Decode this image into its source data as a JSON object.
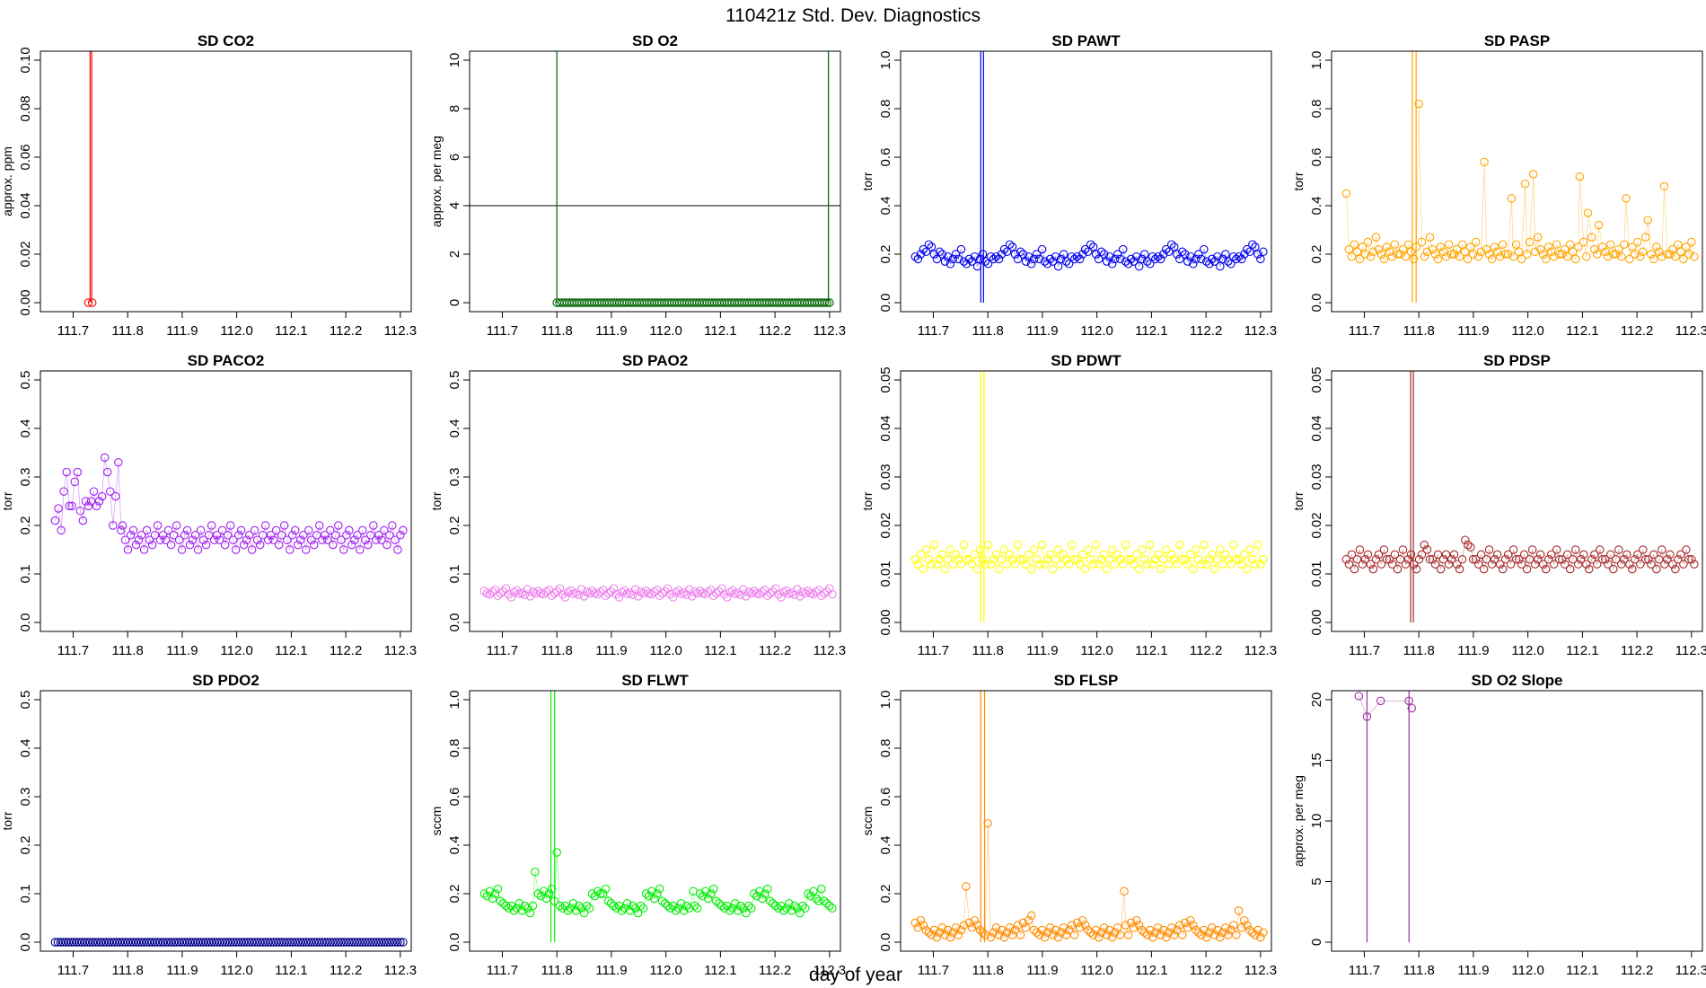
{
  "page": {
    "title": "110421z   Std. Dev. Diagnostics",
    "xlabel": "day of year"
  },
  "chart_data": [
    {
      "type": "scatter",
      "title": "SD CO2",
      "ylabel": "approx. ppm",
      "color": "#ff0000",
      "xlim": [
        111.64,
        112.32
      ],
      "ylim": [
        0,
        0.1
      ],
      "xticks": [
        111.7,
        111.8,
        111.9,
        112.0,
        112.1,
        112.2,
        112.3
      ],
      "yticks": [
        0,
        0.02,
        0.04,
        0.06,
        0.08,
        0.1
      ],
      "ytick_labels": [
        "0.00",
        "0.02",
        "0.04",
        "0.06",
        "0.08",
        "0.10"
      ],
      "gen": {
        "x0": 111.728,
        "x1": 111.735,
        "n": 2,
        "mode": "const",
        "values": [
          0
        ]
      },
      "spikes": [
        {
          "x": 111.731,
          "y": 0.5
        },
        {
          "x": 111.734,
          "y": 0.5
        }
      ]
    },
    {
      "type": "scatter",
      "title": "SD O2",
      "ylabel": "approx. per meg",
      "color": "#006400",
      "xlim": [
        111.64,
        112.32
      ],
      "ylim": [
        0,
        10
      ],
      "xticks": [
        111.7,
        111.8,
        111.9,
        112.0,
        112.1,
        112.2,
        112.3
      ],
      "yticks": [
        0,
        2,
        4,
        6,
        8,
        10
      ],
      "ytick_labels": [
        "0",
        "2",
        "4",
        "6",
        "8",
        "10"
      ],
      "hline": 4,
      "gen": {
        "x0": 111.8,
        "x1": 112.3,
        "n": 110,
        "mode": "const",
        "values": [
          0
        ]
      },
      "spikes": [
        {
          "x": 111.8,
          "y": 50
        },
        {
          "x": 112.298,
          "y": 50
        }
      ]
    },
    {
      "type": "scatter",
      "title": "SD PAWT",
      "ylabel": "torr",
      "color": "#0000ee",
      "xlim": [
        111.64,
        112.32
      ],
      "ylim": [
        0,
        1.0
      ],
      "xticks": [
        111.7,
        111.8,
        111.9,
        112.0,
        112.1,
        112.2,
        112.3
      ],
      "yticks": [
        0,
        0.2,
        0.4,
        0.6,
        0.8,
        1.0
      ],
      "ytick_labels": [
        "0.0",
        "0.2",
        "0.4",
        "0.6",
        "0.8",
        "1.0"
      ],
      "gen": {
        "x0": 111.667,
        "x1": 112.305,
        "n": 130,
        "mode": "cycle",
        "values": [
          0.19,
          0.18,
          0.2,
          0.22,
          0.21,
          0.24,
          0.23,
          0.2,
          0.18,
          0.21,
          0.2,
          0.17,
          0.19,
          0.16,
          0.18,
          0.2,
          0.18,
          0.22,
          0.17,
          0.16,
          0.18,
          0.17,
          0.19,
          0.15,
          0.18,
          0.2,
          0.17,
          0.16,
          0.19,
          0.18
        ]
      },
      "spikes": [
        {
          "x": 111.787,
          "y": 5
        },
        {
          "x": 111.792,
          "y": 5
        }
      ]
    },
    {
      "type": "scatter",
      "title": "SD PASP",
      "ylabel": "torr",
      "color": "#ffa500",
      "xlim": [
        111.64,
        112.32
      ],
      "ylim": [
        0,
        1.0
      ],
      "xticks": [
        111.7,
        111.8,
        111.9,
        112.0,
        112.1,
        112.2,
        112.3
      ],
      "yticks": [
        0,
        0.2,
        0.4,
        0.6,
        0.8,
        1.0
      ],
      "ytick_labels": [
        "0.0",
        "0.2",
        "0.4",
        "0.6",
        "0.8",
        "1.0"
      ],
      "gen": {
        "x0": 111.667,
        "x1": 112.305,
        "n": 130,
        "mode": "cycle",
        "values": [
          0.2,
          0.22,
          0.19,
          0.24,
          0.21,
          0.18,
          0.23,
          0.2,
          0.25,
          0.19,
          0.21,
          0.27,
          0.22,
          0.2,
          0.18,
          0.23,
          0.21,
          0.19,
          0.24,
          0.2
        ]
      },
      "peaks": [
        {
          "x": 111.667,
          "y": 0.45
        },
        {
          "x": 111.8,
          "y": 0.82
        },
        {
          "x": 111.92,
          "y": 0.58
        },
        {
          "x": 111.97,
          "y": 0.43
        },
        {
          "x": 111.995,
          "y": 0.49
        },
        {
          "x": 112.01,
          "y": 0.53
        },
        {
          "x": 112.095,
          "y": 0.52
        },
        {
          "x": 112.11,
          "y": 0.37
        },
        {
          "x": 112.18,
          "y": 0.43
        },
        {
          "x": 112.25,
          "y": 0.48
        },
        {
          "x": 112.13,
          "y": 0.32
        },
        {
          "x": 112.22,
          "y": 0.34
        }
      ],
      "spikes": [
        {
          "x": 111.788,
          "y": 5
        },
        {
          "x": 111.795,
          "y": 5
        }
      ]
    },
    {
      "type": "scatter",
      "title": "SD PACO2",
      "ylabel": "torr",
      "color": "#a020f0",
      "xlim": [
        111.64,
        112.32
      ],
      "ylim": [
        0,
        0.5
      ],
      "xticks": [
        111.7,
        111.8,
        111.9,
        112.0,
        112.1,
        112.2,
        112.3
      ],
      "yticks": [
        0,
        0.1,
        0.2,
        0.3,
        0.4,
        0.5
      ],
      "ytick_labels": [
        "0.0",
        "0.1",
        "0.2",
        "0.3",
        "0.4",
        "0.5"
      ],
      "gen": {
        "x0": 111.667,
        "x1": 112.305,
        "n": 130,
        "mode": "cycle",
        "values": [
          0.18,
          0.17,
          0.19,
          0.16,
          0.18,
          0.2,
          0.17,
          0.15,
          0.18,
          0.19,
          0.16,
          0.17,
          0.18,
          0.15,
          0.19,
          0.17,
          0.16,
          0.18,
          0.2,
          0.17
        ]
      },
      "peaks": [
        {
          "x": 111.667,
          "y": 0.21
        },
        {
          "x": 111.673,
          "y": 0.235
        },
        {
          "x": 111.678,
          "y": 0.19
        },
        {
          "x": 111.683,
          "y": 0.27
        },
        {
          "x": 111.688,
          "y": 0.31
        },
        {
          "x": 111.693,
          "y": 0.24
        },
        {
          "x": 111.698,
          "y": 0.24
        },
        {
          "x": 111.703,
          "y": 0.29
        },
        {
          "x": 111.708,
          "y": 0.31
        },
        {
          "x": 111.713,
          "y": 0.23
        },
        {
          "x": 111.718,
          "y": 0.21
        },
        {
          "x": 111.723,
          "y": 0.25
        },
        {
          "x": 111.728,
          "y": 0.24
        },
        {
          "x": 111.733,
          "y": 0.25
        },
        {
          "x": 111.738,
          "y": 0.27
        },
        {
          "x": 111.743,
          "y": 0.24
        },
        {
          "x": 111.748,
          "y": 0.25
        },
        {
          "x": 111.753,
          "y": 0.26
        },
        {
          "x": 111.758,
          "y": 0.34
        },
        {
          "x": 111.763,
          "y": 0.31
        },
        {
          "x": 111.768,
          "y": 0.27
        },
        {
          "x": 111.773,
          "y": 0.2
        },
        {
          "x": 111.778,
          "y": 0.26
        },
        {
          "x": 111.783,
          "y": 0.33
        },
        {
          "x": 111.788,
          "y": 0.19
        }
      ],
      "spikes": []
    },
    {
      "type": "scatter",
      "title": "SD PAO2",
      "ylabel": "torr",
      "color": "#ee82ee",
      "xlim": [
        111.64,
        112.32
      ],
      "ylim": [
        0,
        0.5
      ],
      "xticks": [
        111.7,
        111.8,
        111.9,
        112.0,
        112.1,
        112.2,
        112.3
      ],
      "yticks": [
        0,
        0.1,
        0.2,
        0.3,
        0.4,
        0.5
      ],
      "ytick_labels": [
        "0.0",
        "0.1",
        "0.2",
        "0.3",
        "0.4",
        "0.5"
      ],
      "gen": {
        "x0": 111.667,
        "x1": 112.305,
        "n": 130,
        "mode": "cycle",
        "values": [
          0.065,
          0.06,
          0.058,
          0.063,
          0.067,
          0.055,
          0.06,
          0.064,
          0.07,
          0.058,
          0.052,
          0.062,
          0.066,
          0.059,
          0.061,
          0.057,
          0.068,
          0.054,
          0.063,
          0.06
        ]
      },
      "spikes": []
    },
    {
      "type": "scatter",
      "title": "SD PDWT",
      "ylabel": "torr",
      "color": "#ffff00",
      "xlim": [
        111.64,
        112.32
      ],
      "ylim": [
        0,
        0.05
      ],
      "xticks": [
        111.7,
        111.8,
        111.9,
        112.0,
        112.1,
        112.2,
        112.3
      ],
      "yticks": [
        0,
        0.01,
        0.02,
        0.03,
        0.04,
        0.05
      ],
      "ytick_labels": [
        "0.00",
        "0.01",
        "0.02",
        "0.03",
        "0.04",
        "0.05"
      ],
      "gen": {
        "x0": 111.667,
        "x1": 112.305,
        "n": 130,
        "mode": "cycle",
        "values": [
          0.013,
          0.012,
          0.014,
          0.011,
          0.015,
          0.013,
          0.012,
          0.016,
          0.012,
          0.013,
          0.014,
          0.011,
          0.013,
          0.015,
          0.012,
          0.014,
          0.013,
          0.012,
          0.016,
          0.013
        ]
      },
      "spikes": [
        {
          "x": 111.787,
          "y": 1
        },
        {
          "x": 111.793,
          "y": 1
        }
      ]
    },
    {
      "type": "scatter",
      "title": "SD PDSP",
      "ylabel": "torr",
      "color": "#a52a2a",
      "xlim": [
        111.64,
        112.32
      ],
      "ylim": [
        0,
        0.05
      ],
      "xticks": [
        111.7,
        111.8,
        111.9,
        112.0,
        112.1,
        112.2,
        112.3
      ],
      "yticks": [
        0,
        0.01,
        0.02,
        0.03,
        0.04,
        0.05
      ],
      "ytick_labels": [
        "0.00",
        "0.01",
        "0.02",
        "0.03",
        "0.04",
        "0.05"
      ],
      "gen": {
        "x0": 111.667,
        "x1": 112.305,
        "n": 130,
        "mode": "cycle",
        "values": [
          0.013,
          0.012,
          0.014,
          0.011,
          0.013,
          0.015,
          0.012,
          0.013,
          0.014,
          0.012,
          0.011,
          0.013,
          0.014,
          0.012,
          0.015,
          0.013
        ]
      },
      "peaks": [
        {
          "x": 111.81,
          "y": 0.016
        },
        {
          "x": 111.85,
          "y": 0.014
        },
        {
          "x": 111.885,
          "y": 0.017
        },
        {
          "x": 111.89,
          "y": 0.016
        },
        {
          "x": 111.895,
          "y": 0.0155
        }
      ],
      "spikes": [
        {
          "x": 111.785,
          "y": 1
        },
        {
          "x": 111.79,
          "y": 1
        }
      ]
    },
    {
      "type": "scatter",
      "title": "SD PDO2",
      "ylabel": "torr",
      "color": "#00008b",
      "xlim": [
        111.64,
        112.32
      ],
      "ylim": [
        0,
        0.5
      ],
      "xticks": [
        111.7,
        111.8,
        111.9,
        112.0,
        112.1,
        112.2,
        112.3
      ],
      "yticks": [
        0,
        0.1,
        0.2,
        0.3,
        0.4,
        0.5
      ],
      "ytick_labels": [
        "0.0",
        "0.1",
        "0.2",
        "0.3",
        "0.4",
        "0.5"
      ],
      "gen": {
        "x0": 111.667,
        "x1": 112.305,
        "n": 130,
        "mode": "const",
        "values": [
          0
        ]
      },
      "spikes": []
    },
    {
      "type": "scatter",
      "title": "SD FLWT",
      "ylabel": "sccm",
      "color": "#00ee00",
      "xlim": [
        111.64,
        112.32
      ],
      "ylim": [
        0,
        1.0
      ],
      "xticks": [
        111.7,
        111.8,
        111.9,
        112.0,
        112.1,
        112.2,
        112.3
      ],
      "yticks": [
        0,
        0.2,
        0.4,
        0.6,
        0.8,
        1.0
      ],
      "ytick_labels": [
        "0.0",
        "0.2",
        "0.4",
        "0.6",
        "0.8",
        "1.0"
      ],
      "gen": {
        "x0": 111.667,
        "x1": 112.305,
        "n": 130,
        "mode": "cycle",
        "values": [
          0.2,
          0.19,
          0.21,
          0.18,
          0.2,
          0.22,
          0.17,
          0.16,
          0.15,
          0.14,
          0.15,
          0.13,
          0.14,
          0.16,
          0.13,
          0.15,
          0.14,
          0.12,
          0.15,
          0.14
        ]
      },
      "peaks": [
        {
          "x": 111.76,
          "y": 0.29
        },
        {
          "x": 111.8,
          "y": 0.37
        },
        {
          "x": 111.88,
          "y": 0.2
        },
        {
          "x": 112.05,
          "y": 0.21
        },
        {
          "x": 112.28,
          "y": 0.17
        }
      ],
      "spikes": [
        {
          "x": 111.789,
          "y": 5
        },
        {
          "x": 111.796,
          "y": 5
        }
      ]
    },
    {
      "type": "scatter",
      "title": "SD FLSP",
      "ylabel": "sccm",
      "color": "#ff8c00",
      "xlim": [
        111.64,
        112.32
      ],
      "ylim": [
        0,
        1.0
      ],
      "xticks": [
        111.7,
        111.8,
        111.9,
        112.0,
        112.1,
        112.2,
        112.3
      ],
      "yticks": [
        0,
        0.2,
        0.4,
        0.6,
        0.8,
        1.0
      ],
      "ytick_labels": [
        "0.0",
        "0.2",
        "0.4",
        "0.6",
        "0.8",
        "1.0"
      ],
      "gen": {
        "x0": 111.667,
        "x1": 112.305,
        "n": 130,
        "mode": "cycle",
        "values": [
          0.08,
          0.06,
          0.09,
          0.07,
          0.05,
          0.04,
          0.03,
          0.05,
          0.02,
          0.04,
          0.06,
          0.03,
          0.05,
          0.02,
          0.04,
          0.06,
          0.03,
          0.05,
          0.07,
          0.03
        ]
      },
      "peaks": [
        {
          "x": 111.76,
          "y": 0.23
        },
        {
          "x": 111.8,
          "y": 0.49
        },
        {
          "x": 111.88,
          "y": 0.11
        },
        {
          "x": 112.05,
          "y": 0.21
        },
        {
          "x": 112.26,
          "y": 0.13
        }
      ],
      "spikes": [
        {
          "x": 111.787,
          "y": 5
        },
        {
          "x": 111.794,
          "y": 5
        }
      ]
    },
    {
      "type": "scatter",
      "title": "SD O2 Slope",
      "ylabel": "approx. per meg",
      "color": "#9b30a0",
      "xlim": [
        111.64,
        112.32
      ],
      "ylim": [
        0,
        20
      ],
      "xticks": [
        111.7,
        111.8,
        111.9,
        112.0,
        112.1,
        112.2,
        112.3
      ],
      "yticks": [
        0,
        5,
        10,
        15,
        20
      ],
      "ytick_labels": [
        "0",
        "5",
        "10",
        "15",
        "20"
      ],
      "points": [
        {
          "x": 111.69,
          "y": 20.3
        },
        {
          "x": 111.705,
          "y": 18.6
        },
        {
          "x": 111.73,
          "y": 19.9
        },
        {
          "x": 111.782,
          "y": 19.9
        },
        {
          "x": 111.787,
          "y": 19.3
        }
      ],
      "spikes": [
        {
          "x": 111.705,
          "y": 40
        },
        {
          "x": 111.782,
          "y": 40
        }
      ]
    }
  ]
}
